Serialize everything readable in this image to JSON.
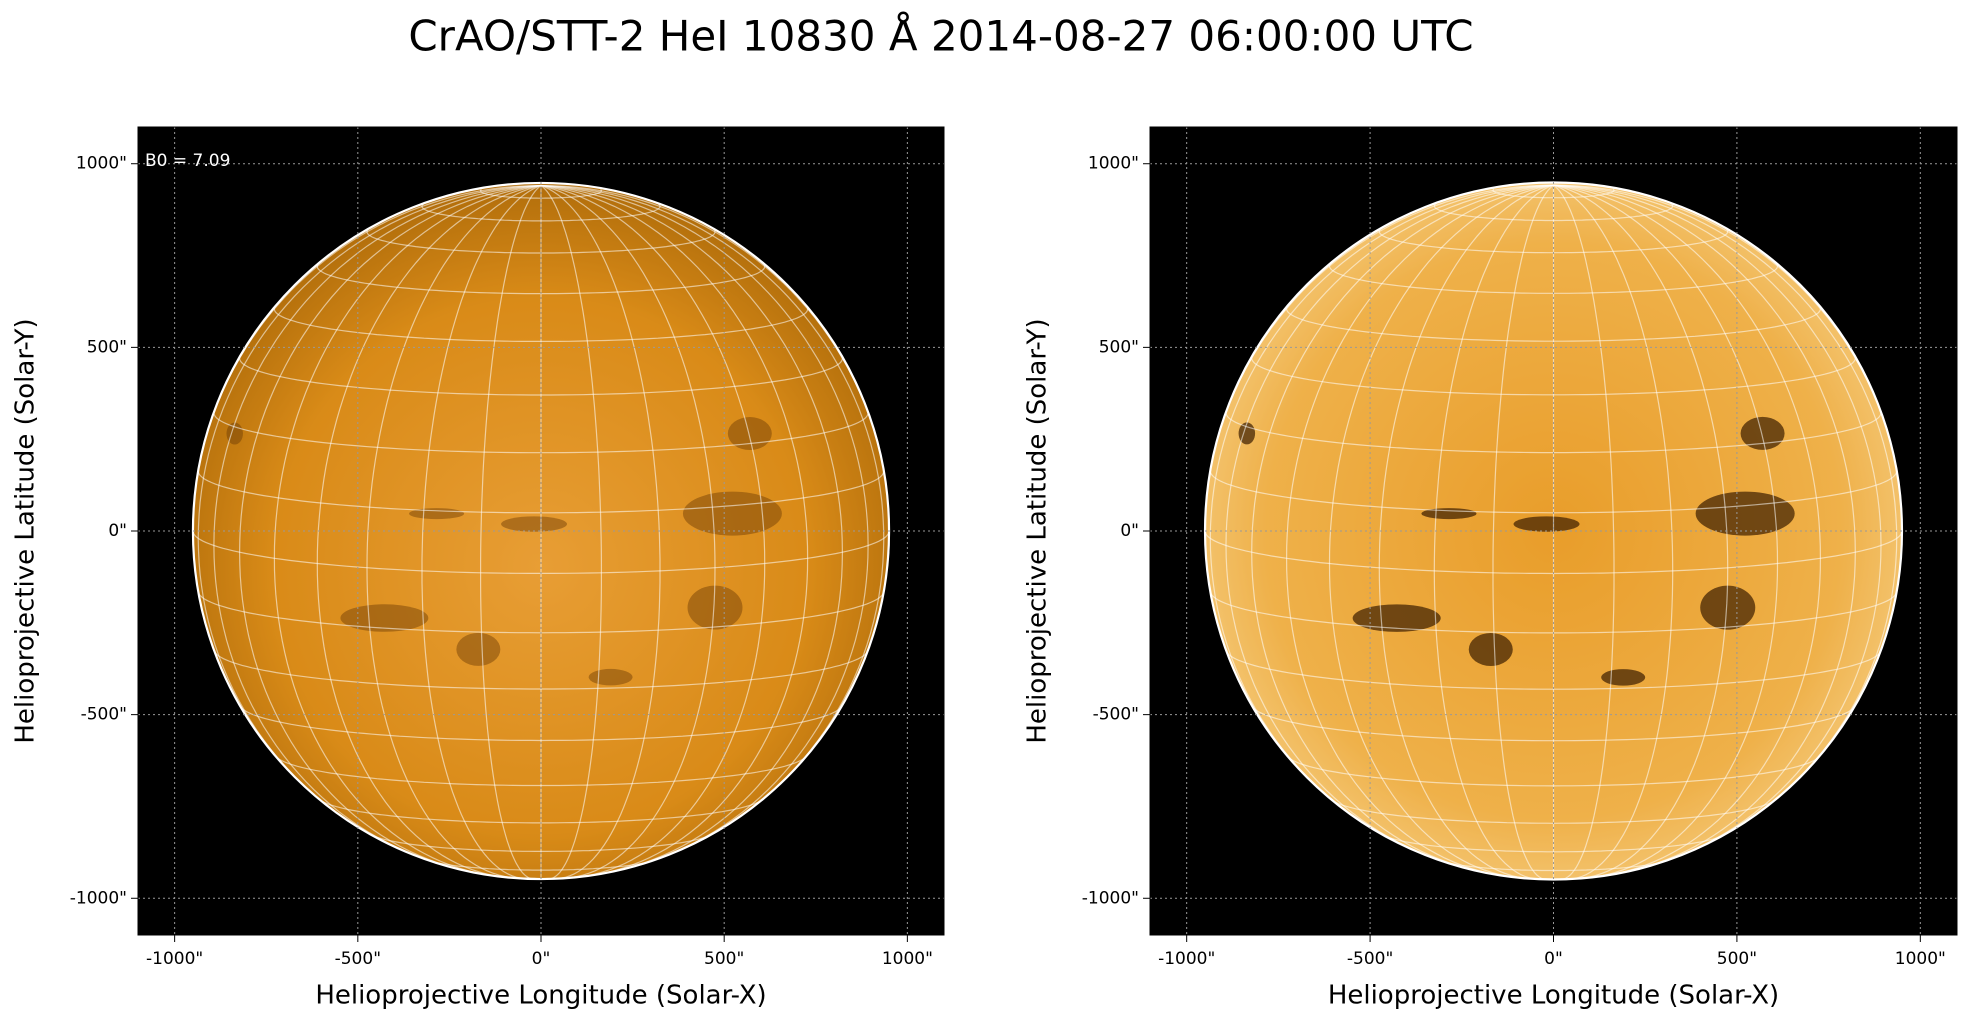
{
  "title": "CrAO/STT-2 HeI 10830 Å 2014-08-27 06:00:00 UTC",
  "chart_data": [
    {
      "type": "map",
      "annotation": "B0 = 7.09",
      "xlabel": "Helioprojective Longitude (Solar-X)",
      "ylabel": "Helioprojective Latitude (Solar-Y)",
      "xlim": [
        -1100,
        1100
      ],
      "ylim": [
        -1100,
        1100
      ],
      "xticks": [
        {
          "value": -1000,
          "label": "-1000\""
        },
        {
          "value": -500,
          "label": "-500\""
        },
        {
          "value": 0,
          "label": "0\""
        },
        {
          "value": 500,
          "label": "500\""
        },
        {
          "value": 1000,
          "label": "1000\""
        }
      ],
      "yticks": [
        {
          "value": -1000,
          "label": "-1000\""
        },
        {
          "value": -500,
          "label": "-500\""
        },
        {
          "value": 0,
          "label": "0\""
        },
        {
          "value": 500,
          "label": "500\""
        },
        {
          "value": 1000,
          "label": "1000\""
        }
      ],
      "grid": true,
      "color": "#d98a12"
    },
    {
      "type": "map",
      "xlabel": "Helioprojective Longitude (Solar-X)",
      "ylabel": "Helioprojective Latitude (Solar-Y)",
      "xlim": [
        -1100,
        1100
      ],
      "ylim": [
        -1100,
        1100
      ],
      "xticks": [
        {
          "value": -1000,
          "label": "-1000\""
        },
        {
          "value": -500,
          "label": "-500\""
        },
        {
          "value": 0,
          "label": "0\""
        },
        {
          "value": 500,
          "label": "500\""
        },
        {
          "value": 1000,
          "label": "1000\""
        }
      ],
      "yticks": [
        {
          "value": -1000,
          "label": "-1000\""
        },
        {
          "value": -500,
          "label": "-500\""
        },
        {
          "value": 0,
          "label": "0\""
        },
        {
          "value": 500,
          "label": "500\""
        },
        {
          "value": 1000,
          "label": "1000\""
        }
      ],
      "grid": true,
      "color": "#eca22a"
    }
  ]
}
